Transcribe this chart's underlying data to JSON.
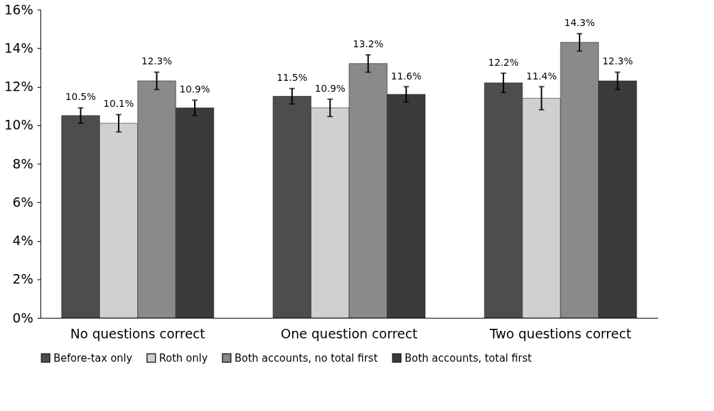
{
  "chart_data": {
    "type": "bar",
    "categories": [
      "No questions correct",
      "One question correct",
      "Two questions correct"
    ],
    "series": [
      {
        "name": "Before-tax only",
        "color": "#4d4d4d",
        "values": [
          10.5,
          11.5,
          12.2
        ],
        "errors": [
          0.4,
          0.4,
          0.5
        ],
        "value_labels": [
          "10.5%",
          "11.5%",
          "12.2%"
        ]
      },
      {
        "name": "Roth only",
        "color": "#d0d0d0",
        "values": [
          10.1,
          10.9,
          11.4
        ],
        "errors": [
          0.45,
          0.45,
          0.6
        ],
        "value_labels": [
          "10.1%",
          "10.9%",
          "11.4%"
        ]
      },
      {
        "name": "Both accounts, no total first",
        "color": "#8a8a8a",
        "values": [
          12.3,
          13.2,
          14.3
        ],
        "errors": [
          0.45,
          0.45,
          0.45
        ],
        "value_labels": [
          "12.3%",
          "13.2%",
          "14.3%"
        ]
      },
      {
        "name": "Both accounts, total first",
        "color": "#3a3a3a",
        "values": [
          10.9,
          11.6,
          12.3
        ],
        "errors": [
          0.4,
          0.4,
          0.45
        ],
        "value_labels": [
          "10.9%",
          "11.6%",
          "12.3%"
        ]
      }
    ],
    "ylim": [
      0,
      16
    ],
    "yticks": [
      {
        "value": 0,
        "label": "0%"
      },
      {
        "value": 2,
        "label": "2%"
      },
      {
        "value": 4,
        "label": "4%"
      },
      {
        "value": 6,
        "label": "6%"
      },
      {
        "value": 8,
        "label": "8%"
      },
      {
        "value": 10,
        "label": "10%"
      },
      {
        "value": 12,
        "label": "12%"
      },
      {
        "value": 14,
        "label": "14%"
      },
      {
        "value": 16,
        "label": "16%"
      }
    ],
    "grid": false,
    "legend": "bottom"
  }
}
